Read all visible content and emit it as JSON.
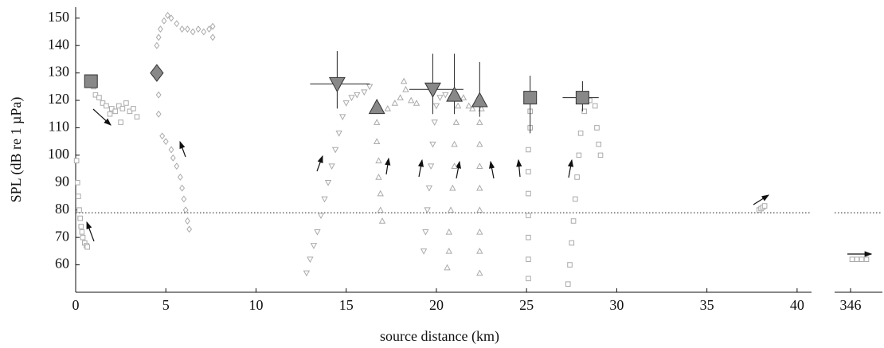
{
  "chart_data": [
    {
      "type": "scatter",
      "xlabel": "source distance (km)",
      "ylabel": "SPL (dB re 1 µPa)",
      "xlim": [
        0,
        40.8
      ],
      "ylim": [
        50,
        154
      ],
      "xticks": [
        0,
        5,
        10,
        15,
        20,
        25,
        30,
        35,
        40
      ],
      "yticks": [
        60,
        70,
        80,
        90,
        100,
        110,
        120,
        130,
        140,
        150
      ],
      "hline": 79,
      "series": [
        {
          "marker": "square",
          "color": "#aaaaaa",
          "x": [
            0.05,
            0.1,
            0.15,
            0.2,
            0.25,
            0.3,
            0.35,
            0.4,
            0.5,
            0.6,
            0.65
          ],
          "values": [
            98,
            90,
            85,
            80,
            77,
            74,
            72,
            70,
            68,
            67,
            66.5
          ]
        },
        {
          "marker": "square",
          "color": "#aaaaaa",
          "x": [
            1.0,
            1.1,
            1.3,
            1.5,
            1.7,
            1.9,
            2.0,
            2.2,
            2.4,
            2.5,
            2.6,
            2.8,
            3.0,
            3.2,
            3.4
          ],
          "values": [
            125,
            122,
            121,
            119,
            118,
            115,
            117,
            116,
            118,
            112,
            117,
            119,
            116,
            117,
            114
          ]
        },
        {
          "marker": "diamond",
          "color": "#aaaaaa",
          "x": [
            4.6,
            4.6,
            4.5,
            4.6,
            4.7,
            4.9,
            5.1,
            5.3,
            5.6,
            5.9,
            6.2,
            6.5,
            6.8,
            7.1,
            7.4,
            7.6,
            7.6,
            4.8,
            5.0,
            5.3,
            5.4,
            5.6,
            5.8,
            5.9,
            6.0,
            6.1,
            6.2,
            6.3
          ],
          "values": [
            115,
            122,
            140,
            143,
            146,
            149,
            151,
            150,
            148,
            146,
            146,
            145,
            146,
            145,
            146,
            143,
            147,
            107,
            105,
            102,
            99,
            96,
            92,
            88,
            84,
            80,
            76,
            73
          ]
        },
        {
          "marker": "triangle-down",
          "color": "#aaaaaa",
          "x": [
            12.8,
            13.0,
            13.2,
            13.4,
            13.6,
            13.8,
            14.0,
            14.2,
            14.4,
            14.6,
            14.8,
            15.0,
            15.3,
            15.6,
            16.0,
            16.3
          ],
          "values": [
            57,
            62,
            67,
            72,
            78,
            84,
            90,
            96,
            102,
            108,
            114,
            119,
            121,
            122,
            123,
            125
          ]
        },
        {
          "marker": "triangle-up",
          "color": "#aaaaaa",
          "x": [
            16.7,
            16.7,
            16.8,
            16.8,
            16.9,
            16.9,
            17.0,
            17.3,
            17.7,
            18.0,
            18.2,
            18.3,
            18.6,
            18.9
          ],
          "values": [
            112,
            105,
            98,
            92,
            86,
            80,
            76,
            117,
            119,
            121,
            127,
            124,
            120,
            119
          ]
        },
        {
          "marker": "triangle-down",
          "color": "#aaaaaa",
          "x": [
            19.3,
            19.4,
            19.5,
            19.6,
            19.7,
            19.8,
            19.9,
            20.0,
            20.2,
            20.5
          ],
          "values": [
            65,
            72,
            80,
            88,
            96,
            104,
            112,
            118,
            121,
            122
          ]
        },
        {
          "marker": "triangle-up",
          "color": "#aaaaaa",
          "x": [
            20.6,
            20.7,
            20.7,
            20.8,
            20.9,
            21.0,
            21.0,
            21.1,
            21.2,
            21.5,
            21.8,
            22.0
          ],
          "values": [
            59,
            65,
            72,
            80,
            88,
            96,
            104,
            112,
            118,
            121,
            118,
            117
          ]
        },
        {
          "marker": "triangle-up",
          "color": "#aaaaaa",
          "x": [
            22.4,
            22.4,
            22.4,
            22.4,
            22.4,
            22.4,
            22.4,
            22.4,
            22.5
          ],
          "values": [
            57,
            65,
            72,
            80,
            88,
            96,
            104,
            112,
            117
          ]
        },
        {
          "marker": "square",
          "color": "#aaaaaa",
          "x": [
            25.1,
            25.1,
            25.1,
            25.1,
            25.1,
            25.1,
            25.1,
            25.2,
            25.2,
            25.2
          ],
          "values": [
            55,
            62,
            70,
            78,
            86,
            94,
            102,
            110,
            116,
            121
          ]
        },
        {
          "marker": "square",
          "color": "#aaaaaa",
          "x": [
            27.3,
            27.4,
            27.5,
            27.6,
            27.7,
            27.8,
            27.9,
            28.0,
            28.2,
            28.5,
            28.8,
            28.9,
            29.0,
            29.1
          ],
          "values": [
            53,
            60,
            68,
            76,
            84,
            92,
            100,
            108,
            116,
            120,
            118,
            110,
            104,
            100
          ]
        },
        {
          "marker": "square",
          "color": "#aaaaaa",
          "x": [
            37.9,
            38.0,
            38.1,
            38.2
          ],
          "values": [
            80,
            80.5,
            81,
            81.5
          ]
        }
      ],
      "summary": {
        "color": "#888888",
        "markers": [
          "square",
          "diamond",
          "triangle-down",
          "triangle-up",
          "triangle-down",
          "triangle-up",
          "triangle-up",
          "square",
          "square"
        ],
        "x": [
          0.85,
          4.5,
          14.5,
          16.7,
          19.8,
          21.0,
          22.4,
          25.2,
          28.1
        ],
        "values": [
          127,
          130,
          126,
          117.5,
          124,
          122,
          120,
          121,
          121
        ],
        "ylow": [
          null,
          null,
          117,
          null,
          115,
          115,
          114,
          108,
          116
        ],
        "yhigh": [
          null,
          null,
          138,
          null,
          137,
          137,
          134,
          129,
          127
        ],
        "xlow": [
          null,
          null,
          13.0,
          null,
          18.5,
          null,
          null,
          null,
          27.0
        ],
        "xhigh": [
          null,
          null,
          16.3,
          null,
          21.5,
          null,
          null,
          null,
          29.0
        ]
      }
    },
    {
      "type": "scatter",
      "xlim": [
        345,
        348
      ],
      "ylim": [
        50,
        154
      ],
      "xticks": [
        346
      ],
      "hline": 79,
      "series": [
        {
          "marker": "square",
          "color": "#aaaaaa",
          "x": [
            346.1,
            346.4,
            346.7,
            347.0
          ],
          "values": [
            62,
            62,
            62,
            62
          ]
        }
      ]
    }
  ]
}
